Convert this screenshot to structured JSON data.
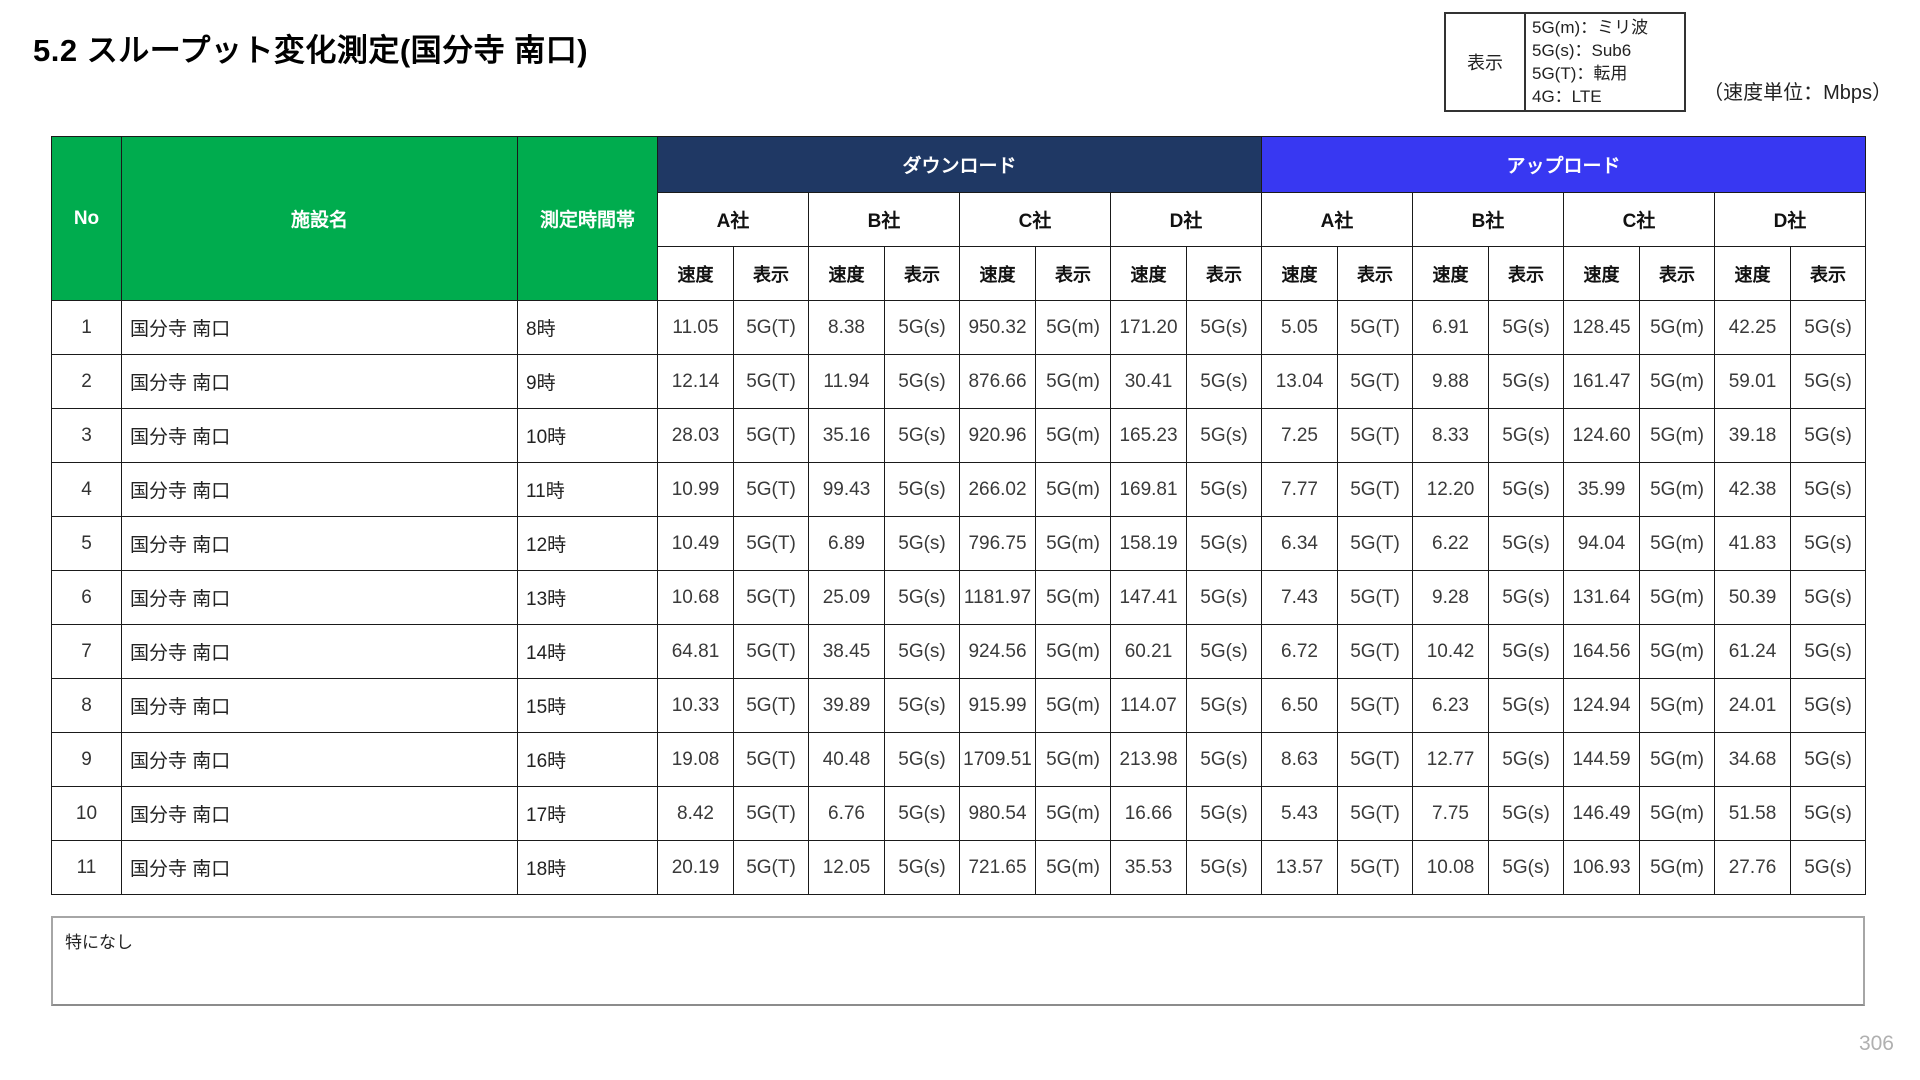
{
  "page": {
    "title": "5.2 スループット変化測定(国分寺 南口)",
    "unit_note": "（速度単位：Mbps）",
    "note": "特になし",
    "page_number": "306"
  },
  "legend": {
    "label": "表示",
    "lines": [
      "5G(m)：ミリ波",
      "5G(s)：Sub6",
      "5G(T)：転用",
      "4G：LTE"
    ]
  },
  "colors": {
    "header_green": "#00AC4E",
    "download_navy": "#1F3864",
    "upload_blue": "#3838F2"
  },
  "table": {
    "col_no": "No",
    "col_facility": "施設名",
    "col_time": "測定時間帯",
    "group_download": "ダウンロード",
    "group_upload": "アップロード",
    "companies": [
      "A社",
      "B社",
      "C社",
      "D社"
    ],
    "sub_speed": "速度",
    "sub_disp": "表示",
    "rows": [
      {
        "no": "1",
        "facility": "国分寺 南口",
        "time": "8時",
        "cells": [
          [
            "11.05",
            "5G(T)"
          ],
          [
            "8.38",
            "5G(s)"
          ],
          [
            "950.32",
            "5G(m)"
          ],
          [
            "171.20",
            "5G(s)"
          ],
          [
            "5.05",
            "5G(T)"
          ],
          [
            "6.91",
            "5G(s)"
          ],
          [
            "128.45",
            "5G(m)"
          ],
          [
            "42.25",
            "5G(s)"
          ]
        ]
      },
      {
        "no": "2",
        "facility": "国分寺 南口",
        "time": "9時",
        "cells": [
          [
            "12.14",
            "5G(T)"
          ],
          [
            "11.94",
            "5G(s)"
          ],
          [
            "876.66",
            "5G(m)"
          ],
          [
            "30.41",
            "5G(s)"
          ],
          [
            "13.04",
            "5G(T)"
          ],
          [
            "9.88",
            "5G(s)"
          ],
          [
            "161.47",
            "5G(m)"
          ],
          [
            "59.01",
            "5G(s)"
          ]
        ]
      },
      {
        "no": "3",
        "facility": "国分寺 南口",
        "time": "10時",
        "cells": [
          [
            "28.03",
            "5G(T)"
          ],
          [
            "35.16",
            "5G(s)"
          ],
          [
            "920.96",
            "5G(m)"
          ],
          [
            "165.23",
            "5G(s)"
          ],
          [
            "7.25",
            "5G(T)"
          ],
          [
            "8.33",
            "5G(s)"
          ],
          [
            "124.60",
            "5G(m)"
          ],
          [
            "39.18",
            "5G(s)"
          ]
        ]
      },
      {
        "no": "4",
        "facility": "国分寺 南口",
        "time": "11時",
        "cells": [
          [
            "10.99",
            "5G(T)"
          ],
          [
            "99.43",
            "5G(s)"
          ],
          [
            "266.02",
            "5G(m)"
          ],
          [
            "169.81",
            "5G(s)"
          ],
          [
            "7.77",
            "5G(T)"
          ],
          [
            "12.20",
            "5G(s)"
          ],
          [
            "35.99",
            "5G(m)"
          ],
          [
            "42.38",
            "5G(s)"
          ]
        ]
      },
      {
        "no": "5",
        "facility": "国分寺 南口",
        "time": "12時",
        "cells": [
          [
            "10.49",
            "5G(T)"
          ],
          [
            "6.89",
            "5G(s)"
          ],
          [
            "796.75",
            "5G(m)"
          ],
          [
            "158.19",
            "5G(s)"
          ],
          [
            "6.34",
            "5G(T)"
          ],
          [
            "6.22",
            "5G(s)"
          ],
          [
            "94.04",
            "5G(m)"
          ],
          [
            "41.83",
            "5G(s)"
          ]
        ]
      },
      {
        "no": "6",
        "facility": "国分寺 南口",
        "time": "13時",
        "cells": [
          [
            "10.68",
            "5G(T)"
          ],
          [
            "25.09",
            "5G(s)"
          ],
          [
            "1181.97",
            "5G(m)"
          ],
          [
            "147.41",
            "5G(s)"
          ],
          [
            "7.43",
            "5G(T)"
          ],
          [
            "9.28",
            "5G(s)"
          ],
          [
            "131.64",
            "5G(m)"
          ],
          [
            "50.39",
            "5G(s)"
          ]
        ]
      },
      {
        "no": "7",
        "facility": "国分寺 南口",
        "time": "14時",
        "cells": [
          [
            "64.81",
            "5G(T)"
          ],
          [
            "38.45",
            "5G(s)"
          ],
          [
            "924.56",
            "5G(m)"
          ],
          [
            "60.21",
            "5G(s)"
          ],
          [
            "6.72",
            "5G(T)"
          ],
          [
            "10.42",
            "5G(s)"
          ],
          [
            "164.56",
            "5G(m)"
          ],
          [
            "61.24",
            "5G(s)"
          ]
        ]
      },
      {
        "no": "8",
        "facility": "国分寺 南口",
        "time": "15時",
        "cells": [
          [
            "10.33",
            "5G(T)"
          ],
          [
            "39.89",
            "5G(s)"
          ],
          [
            "915.99",
            "5G(m)"
          ],
          [
            "114.07",
            "5G(s)"
          ],
          [
            "6.50",
            "5G(T)"
          ],
          [
            "6.23",
            "5G(s)"
          ],
          [
            "124.94",
            "5G(m)"
          ],
          [
            "24.01",
            "5G(s)"
          ]
        ]
      },
      {
        "no": "9",
        "facility": "国分寺 南口",
        "time": "16時",
        "cells": [
          [
            "19.08",
            "5G(T)"
          ],
          [
            "40.48",
            "5G(s)"
          ],
          [
            "1709.51",
            "5G(m)"
          ],
          [
            "213.98",
            "5G(s)"
          ],
          [
            "8.63",
            "5G(T)"
          ],
          [
            "12.77",
            "5G(s)"
          ],
          [
            "144.59",
            "5G(m)"
          ],
          [
            "34.68",
            "5G(s)"
          ]
        ]
      },
      {
        "no": "10",
        "facility": "国分寺 南口",
        "time": "17時",
        "cells": [
          [
            "8.42",
            "5G(T)"
          ],
          [
            "6.76",
            "5G(s)"
          ],
          [
            "980.54",
            "5G(m)"
          ],
          [
            "16.66",
            "5G(s)"
          ],
          [
            "5.43",
            "5G(T)"
          ],
          [
            "7.75",
            "5G(s)"
          ],
          [
            "146.49",
            "5G(m)"
          ],
          [
            "51.58",
            "5G(s)"
          ]
        ]
      },
      {
        "no": "11",
        "facility": "国分寺 南口",
        "time": "18時",
        "cells": [
          [
            "20.19",
            "5G(T)"
          ],
          [
            "12.05",
            "5G(s)"
          ],
          [
            "721.65",
            "5G(m)"
          ],
          [
            "35.53",
            "5G(s)"
          ],
          [
            "13.57",
            "5G(T)"
          ],
          [
            "10.08",
            "5G(s)"
          ],
          [
            "106.93",
            "5G(m)"
          ],
          [
            "27.76",
            "5G(s)"
          ]
        ]
      }
    ]
  }
}
